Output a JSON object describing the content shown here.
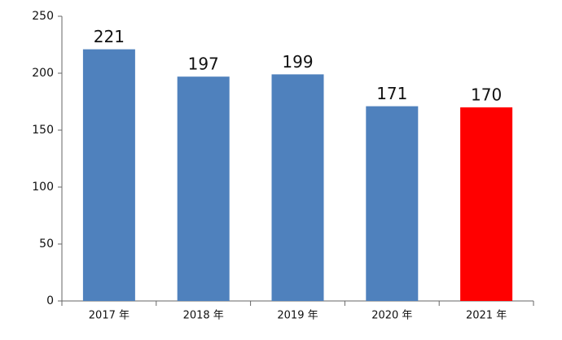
{
  "chart_data": {
    "type": "bar",
    "categories": [
      "2017 年",
      "2018 年",
      "2019 年",
      "2020 年",
      "2021 年"
    ],
    "values": [
      221,
      197,
      199,
      171,
      170
    ],
    "colors": [
      "#4f81bd",
      "#4f81bd",
      "#4f81bd",
      "#4f81bd",
      "#ff0000"
    ],
    "ylim": [
      0,
      250
    ],
    "yticks": [
      0,
      50,
      100,
      150,
      200,
      250
    ],
    "grid": false
  }
}
